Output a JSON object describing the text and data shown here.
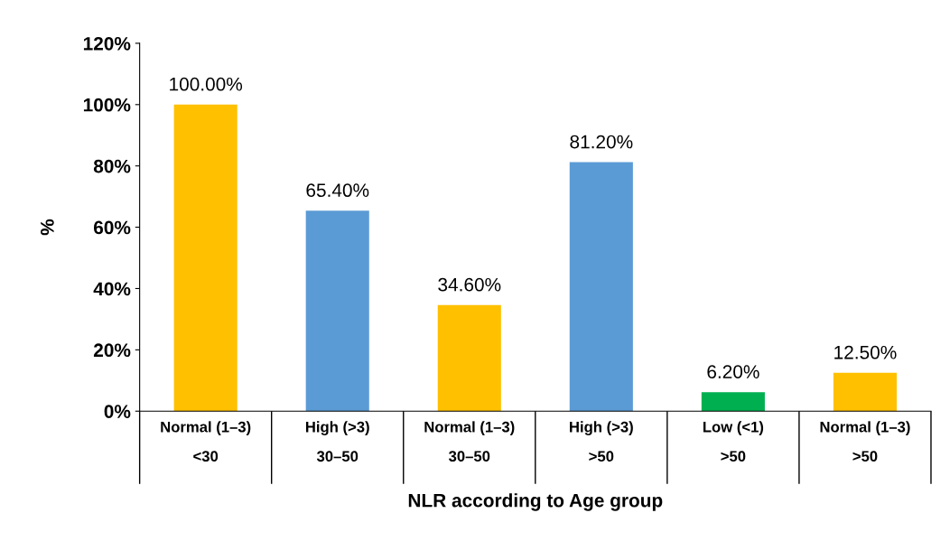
{
  "chart_data": {
    "type": "bar",
    "xlabel": "NLR according to Age group",
    "ylabel": "%",
    "categories": [
      "Normal (1–3)\n<30",
      "High (>3)\n30–50",
      "Normal (1–3)\n30–50",
      "High (>3)\n>50",
      "Low (<1)\n>50",
      "Normal (1–3)\n>50"
    ],
    "values": [
      100,
      65.4,
      34.6,
      81.2,
      6.2,
      12.5
    ],
    "colors": [
      "#ffc000",
      "#5b9bd5",
      "#ffc000",
      "#5b9bd5",
      "#00b050",
      "#ffc000"
    ],
    "value_labels": [
      "100.00%",
      "65.40%",
      "34.60%",
      "81.20%",
      "6.20%",
      "12.50%"
    ],
    "ylim": [
      0,
      120
    ],
    "yticks": [
      {
        "value": 0,
        "label": "0%"
      },
      {
        "value": 20,
        "label": "20%"
      },
      {
        "value": 40,
        "label": "40%"
      },
      {
        "value": 60,
        "label": "60%"
      },
      {
        "value": 80,
        "label": "80%"
      },
      {
        "value": 100,
        "label": "100%"
      },
      {
        "value": 120,
        "label": "120%"
      }
    ],
    "grid": false
  }
}
